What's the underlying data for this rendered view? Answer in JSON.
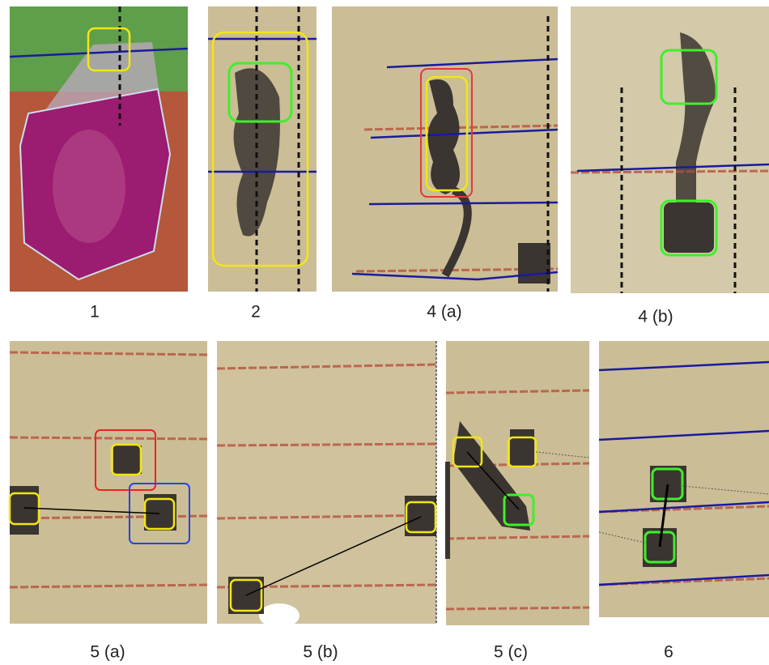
{
  "panels": [
    {
      "caption": "1"
    },
    {
      "caption": "2"
    },
    {
      "caption": "4 (a)"
    },
    {
      "caption": "4 (b)"
    },
    {
      "caption": "5 (a)"
    },
    {
      "caption": "5 (b)"
    },
    {
      "caption": "5 (c)"
    },
    {
      "caption": "6"
    }
  ]
}
